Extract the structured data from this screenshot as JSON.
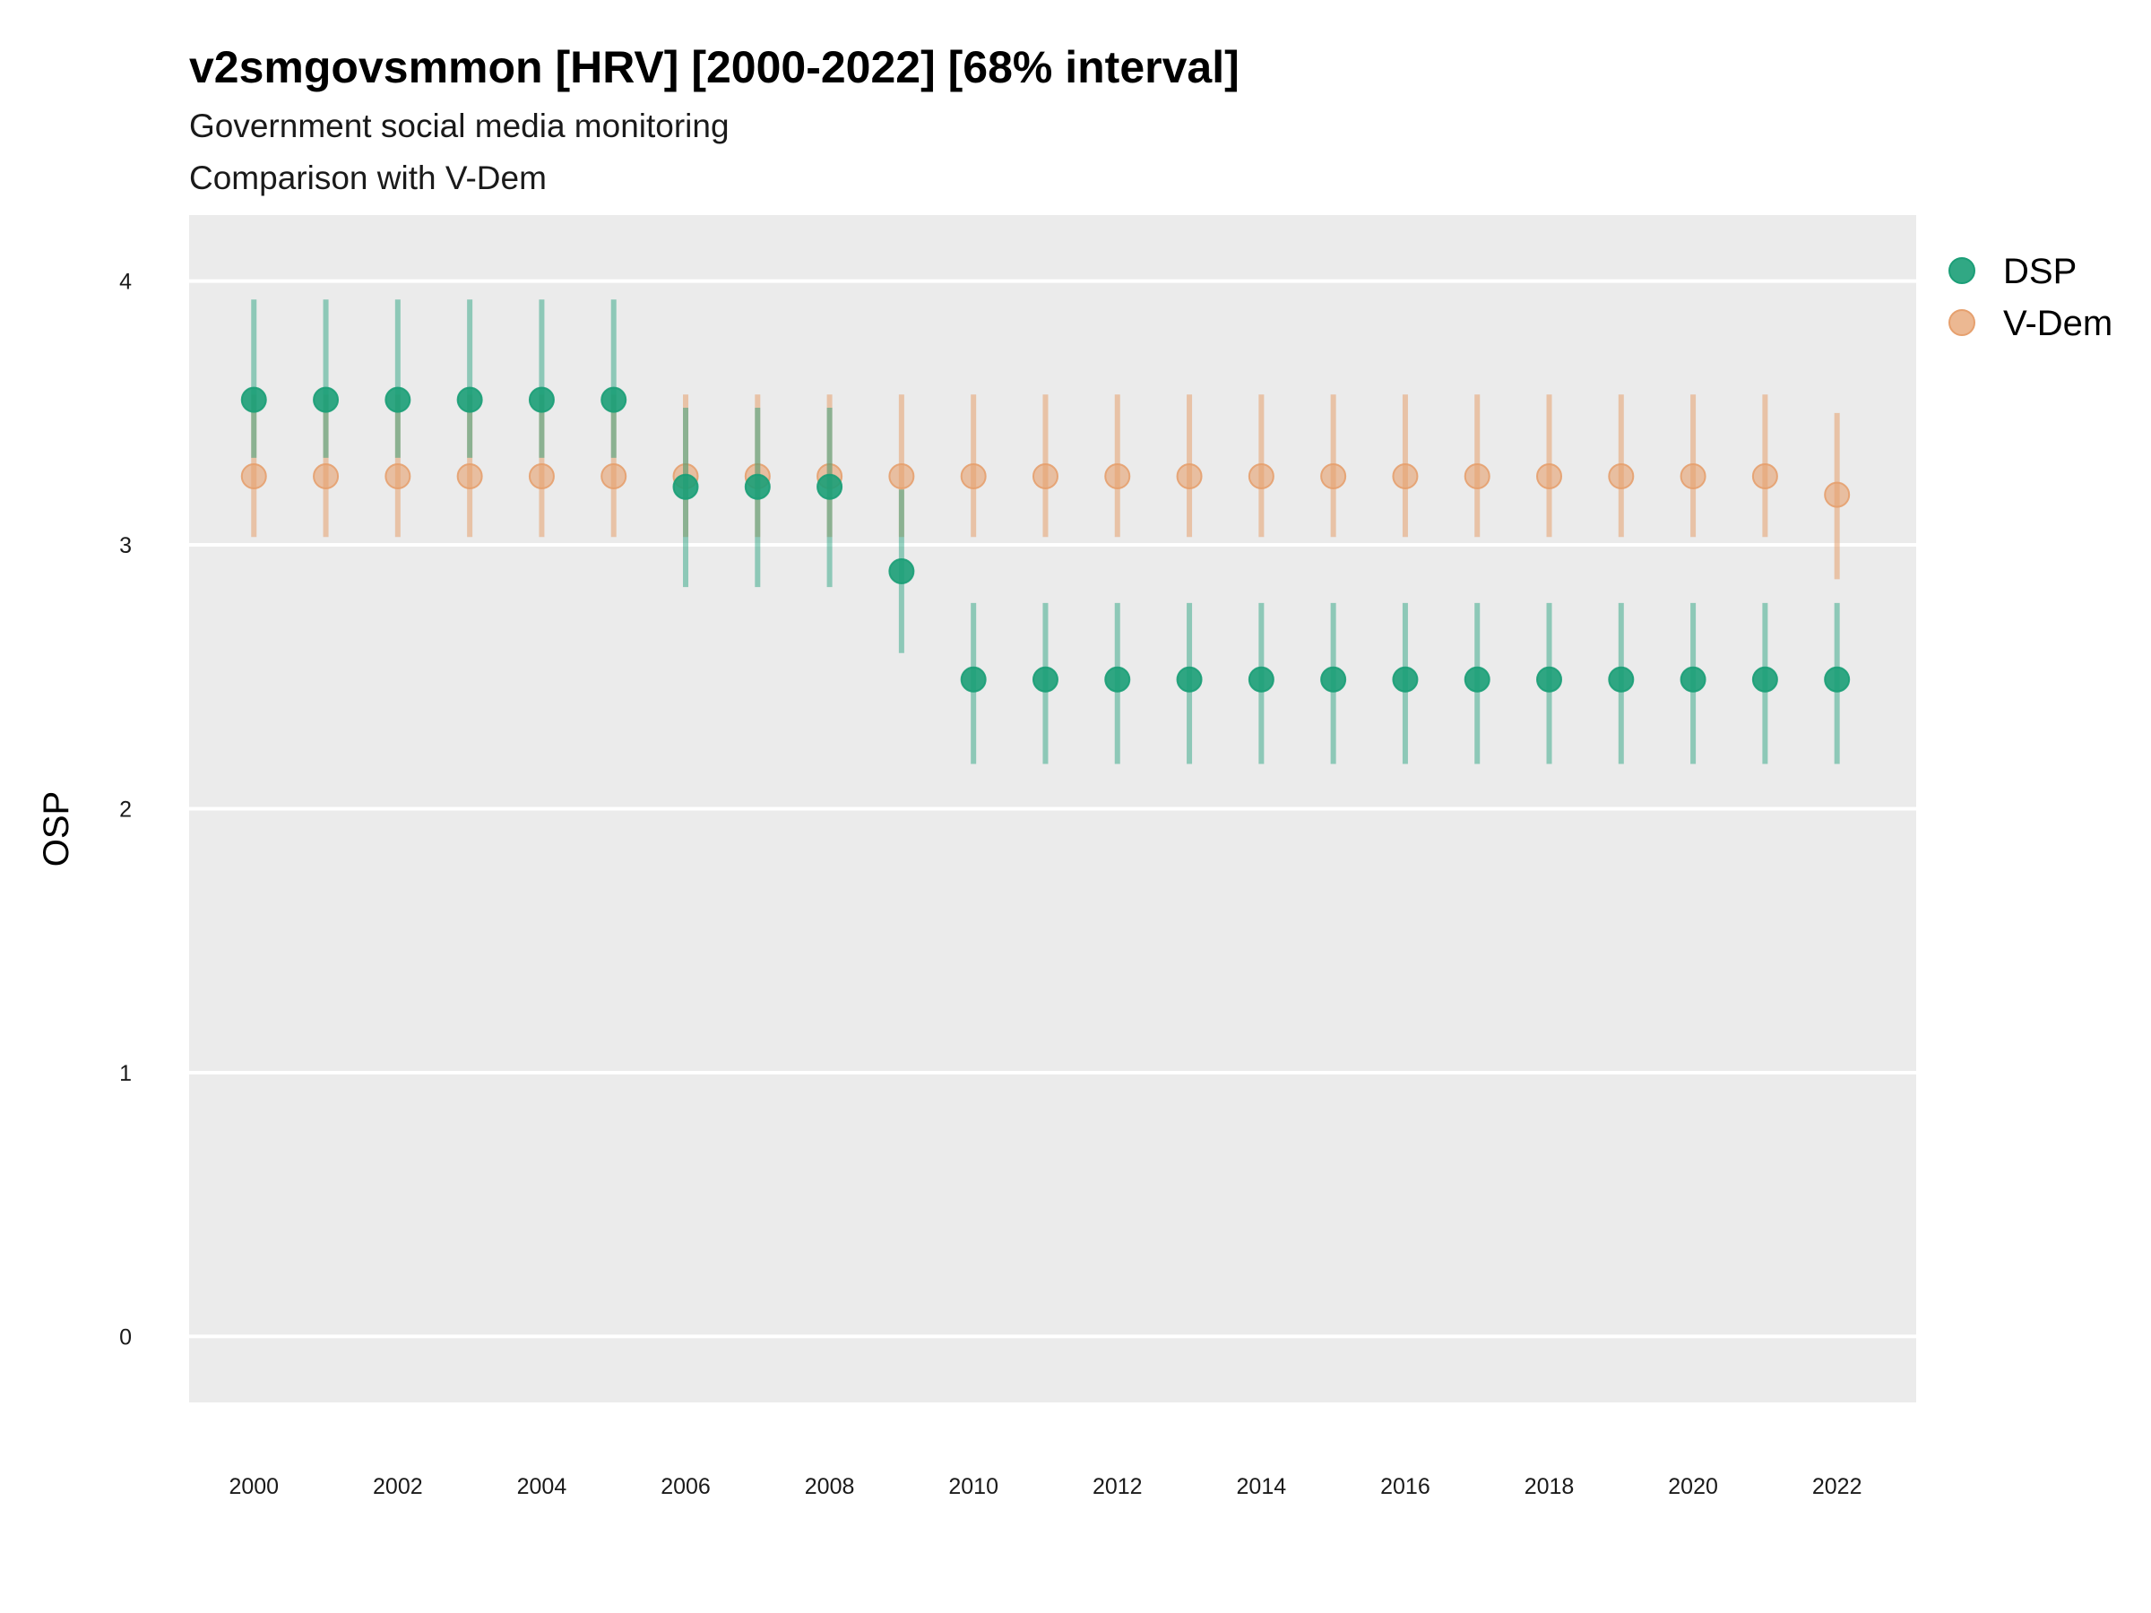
{
  "chart_data": {
    "type": "scatter",
    "title": "v2smgovsmmon [HRV] [2000-2022] [68% interval]",
    "subtitle": "Government social media monitoring",
    "caption_line": "Comparison with V-Dem",
    "xlabel": "",
    "ylabel": "OSP",
    "ylim": [
      -0.25,
      4.25
    ],
    "xlim": [
      1999.1,
      2023.1
    ],
    "y_ticks": [
      0,
      1,
      2,
      3,
      4
    ],
    "x_ticks": [
      2000,
      2002,
      2004,
      2006,
      2008,
      2010,
      2012,
      2014,
      2016,
      2018,
      2020,
      2022
    ],
    "grid": true,
    "legend_position": "right",
    "x": [
      2000,
      2001,
      2002,
      2003,
      2004,
      2005,
      2006,
      2007,
      2008,
      2009,
      2010,
      2011,
      2012,
      2013,
      2014,
      2015,
      2016,
      2017,
      2018,
      2019,
      2020,
      2021,
      2022
    ],
    "series": [
      {
        "name": "DSP",
        "color": "#1b9e77",
        "values": [
          3.55,
          3.55,
          3.55,
          3.55,
          3.55,
          3.55,
          3.22,
          3.22,
          3.22,
          2.9,
          2.49,
          2.49,
          2.49,
          2.49,
          2.49,
          2.49,
          2.49,
          2.49,
          2.49,
          2.49,
          2.49,
          2.49,
          2.49
        ],
        "lower": [
          3.33,
          3.33,
          3.33,
          3.33,
          3.33,
          3.33,
          2.84,
          2.84,
          2.84,
          2.59,
          2.17,
          2.17,
          2.17,
          2.17,
          2.17,
          2.17,
          2.17,
          2.17,
          2.17,
          2.17,
          2.17,
          2.17,
          2.17
        ],
        "upper": [
          3.93,
          3.93,
          3.93,
          3.93,
          3.93,
          3.93,
          3.52,
          3.52,
          3.52,
          3.21,
          2.78,
          2.78,
          2.78,
          2.78,
          2.78,
          2.78,
          2.78,
          2.78,
          2.78,
          2.78,
          2.78,
          2.78,
          2.78
        ]
      },
      {
        "name": "V-Dem",
        "color": "#e6a06e",
        "values": [
          3.26,
          3.26,
          3.26,
          3.26,
          3.26,
          3.26,
          3.26,
          3.26,
          3.26,
          3.26,
          3.26,
          3.26,
          3.26,
          3.26,
          3.26,
          3.26,
          3.26,
          3.26,
          3.26,
          3.26,
          3.26,
          3.26,
          3.19
        ],
        "lower": [
          3.03,
          3.03,
          3.03,
          3.03,
          3.03,
          3.03,
          3.03,
          3.03,
          3.03,
          3.03,
          3.03,
          3.03,
          3.03,
          3.03,
          3.03,
          3.03,
          3.03,
          3.03,
          3.03,
          3.03,
          3.03,
          3.03,
          2.87
        ],
        "upper": [
          3.57,
          3.57,
          3.57,
          3.57,
          3.57,
          3.57,
          3.57,
          3.57,
          3.57,
          3.57,
          3.57,
          3.57,
          3.57,
          3.57,
          3.57,
          3.57,
          3.57,
          3.57,
          3.57,
          3.57,
          3.57,
          3.57,
          3.5
        ]
      }
    ]
  }
}
